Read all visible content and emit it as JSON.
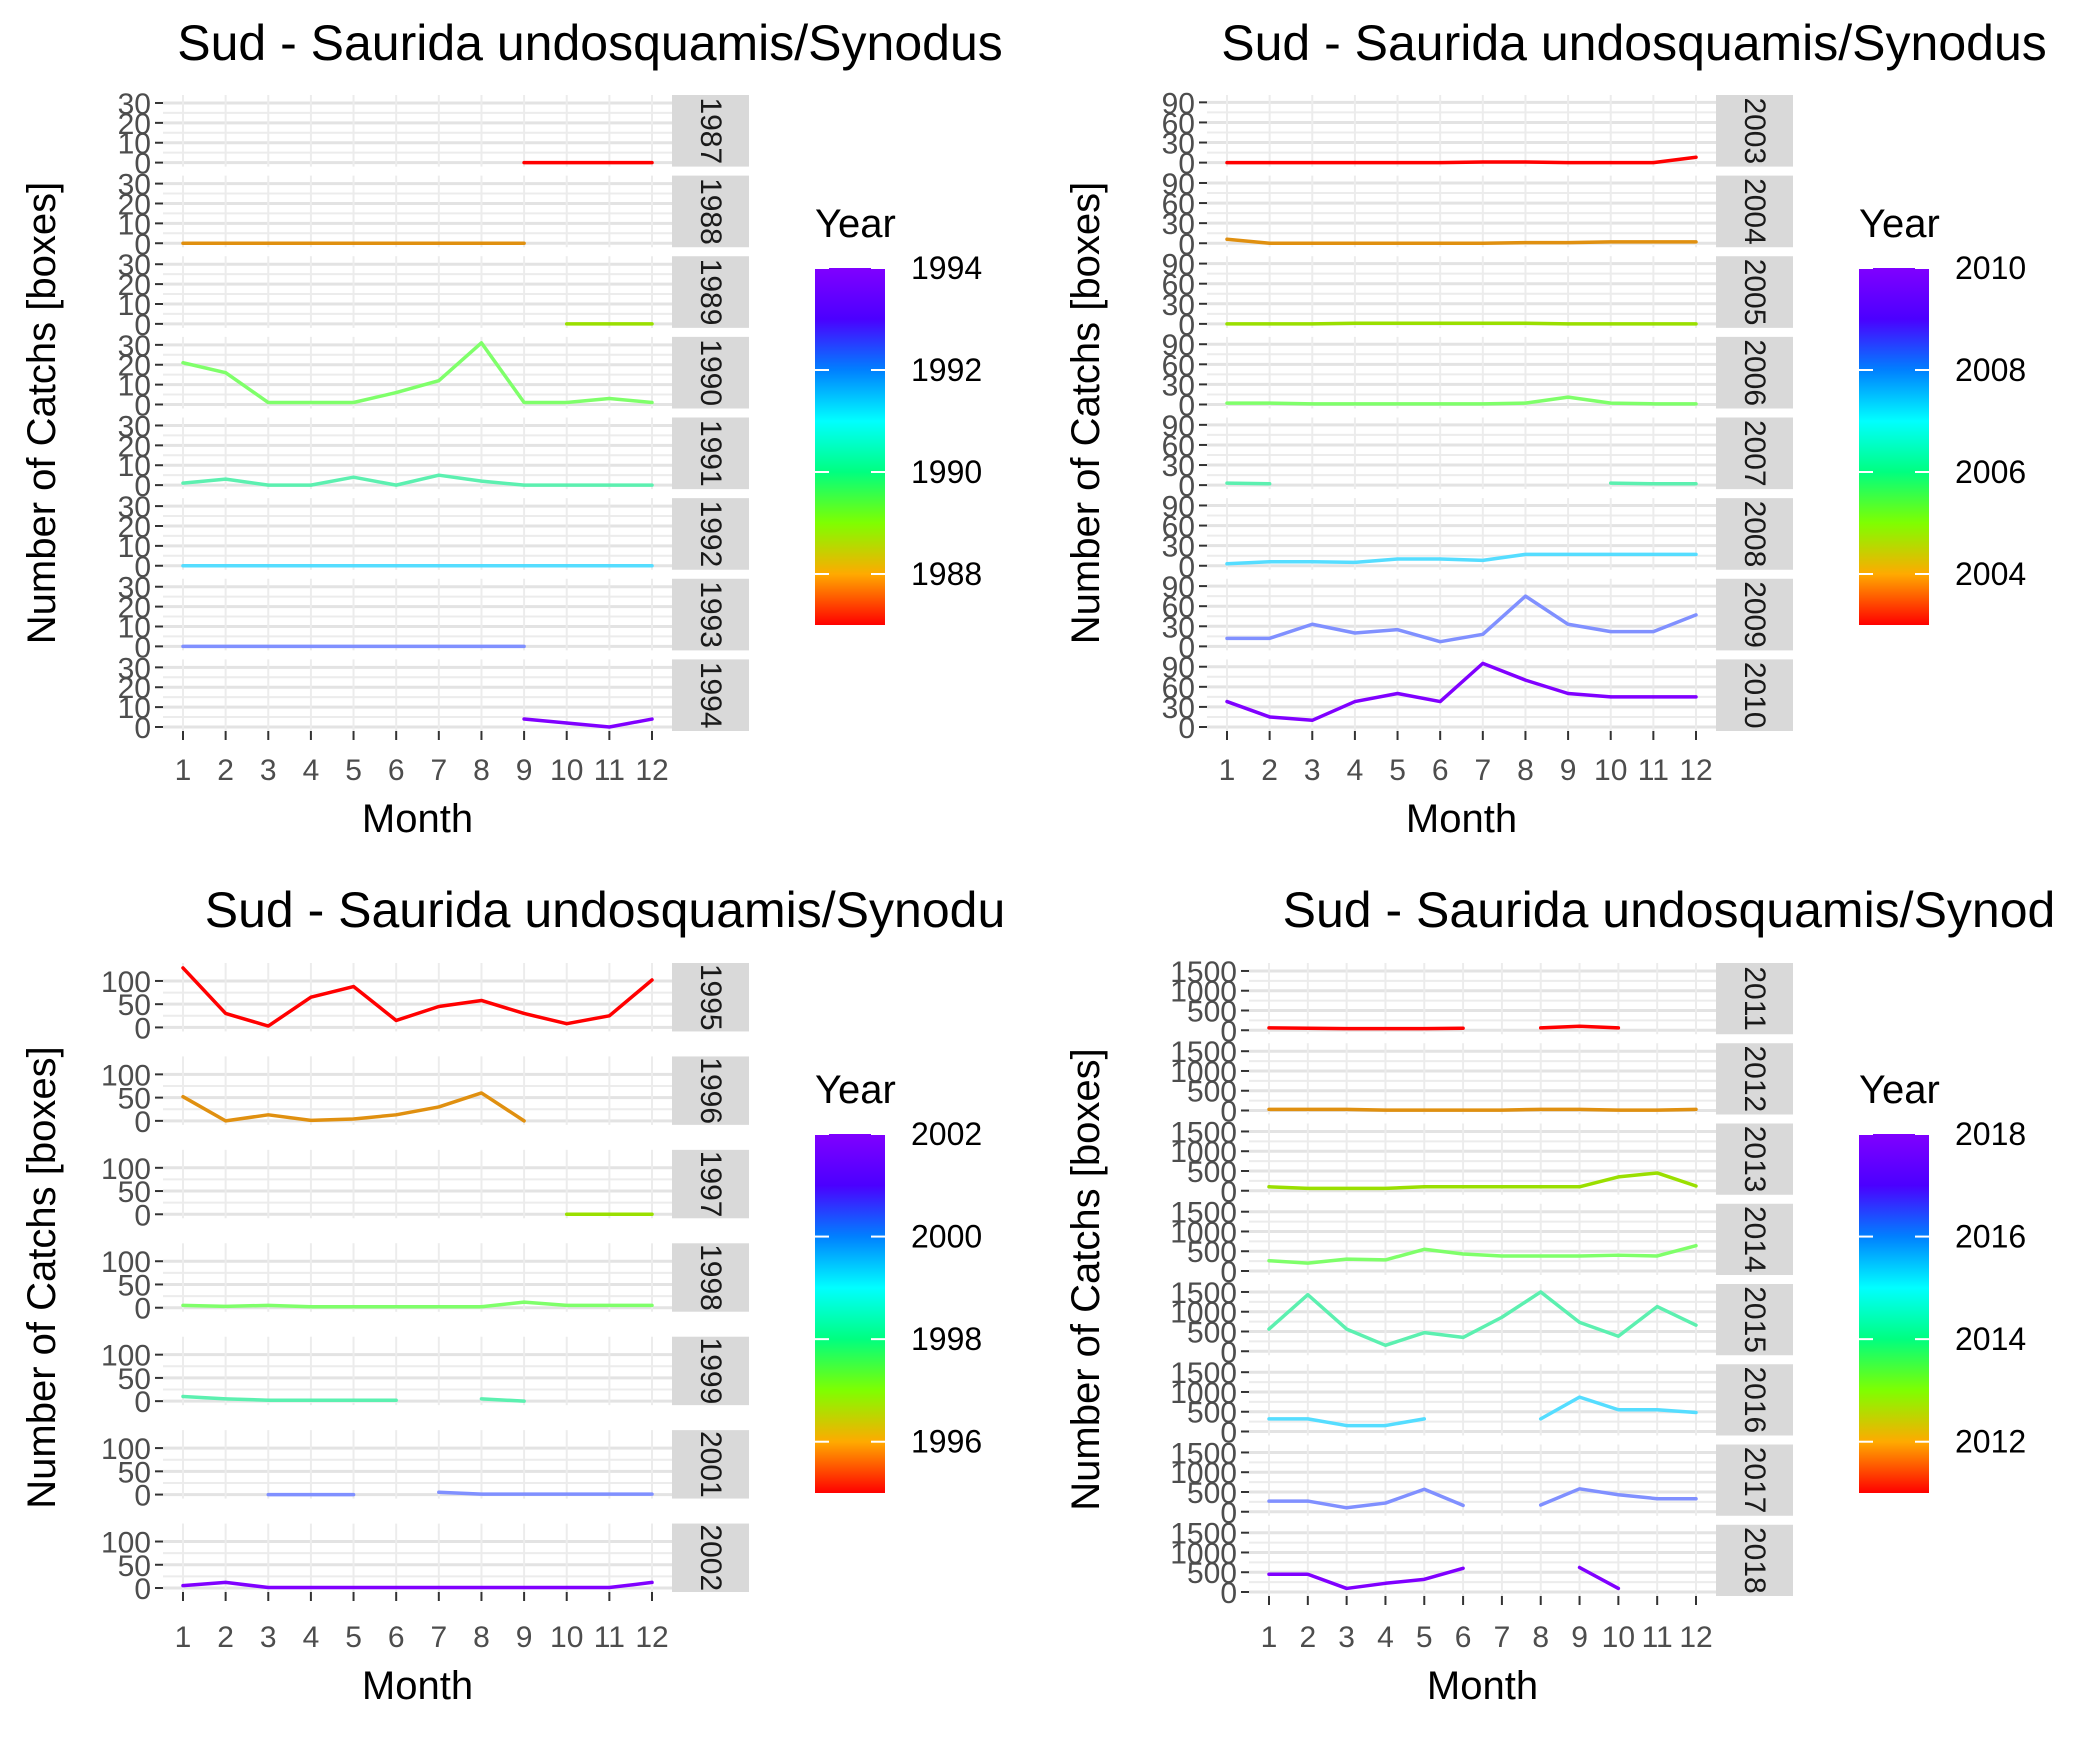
{
  "chart_data": [
    {
      "type": "line",
      "title": "Sud - Saurida undosquamis/Synodus",
      "xlabel": "Month",
      "ylabel": "Number of Catchs [boxes]",
      "x": [
        "1",
        "2",
        "3",
        "4",
        "5",
        "6",
        "7",
        "8",
        "9",
        "10",
        "11",
        "12"
      ],
      "yticks": [
        "0",
        "10",
        "20",
        "30"
      ],
      "ylim": [
        0,
        32
      ],
      "facet_strip_side": "right",
      "legend": {
        "title": "Year",
        "position": "right",
        "ticks": [
          "1994",
          "1992",
          "1990",
          "1988"
        ],
        "range": [
          1987,
          1994
        ],
        "colors": [
          "#ff0000",
          "#ffaa00",
          "#7fff00",
          "#00ff80",
          "#00ffff",
          "#0080ff",
          "#4b00ff",
          "#8000ff"
        ]
      },
      "panels": [
        {
          "label": "1987",
          "color": "#ff0000",
          "values": [
            null,
            null,
            null,
            null,
            null,
            null,
            null,
            null,
            0,
            0,
            0,
            0
          ]
        },
        {
          "label": "1988",
          "color": "#e09010",
          "values": [
            0,
            0,
            0,
            0,
            0,
            0,
            0,
            0,
            0,
            null,
            null,
            null
          ]
        },
        {
          "label": "1989",
          "color": "#9adf00",
          "values": [
            null,
            null,
            null,
            null,
            null,
            null,
            null,
            null,
            null,
            0,
            0,
            0
          ]
        },
        {
          "label": "1990",
          "color": "#7fff6a",
          "values": [
            21,
            16,
            1,
            1,
            1,
            6,
            12,
            31,
            1,
            1,
            3,
            1
          ]
        },
        {
          "label": "1991",
          "color": "#5cf0b0",
          "values": [
            1,
            3,
            0,
            0,
            4,
            0,
            5,
            2,
            0,
            0,
            0,
            0
          ]
        },
        {
          "label": "1992",
          "color": "#55ddff",
          "values": [
            0,
            0,
            0,
            0,
            0,
            0,
            0,
            0,
            0,
            0,
            0,
            0
          ]
        },
        {
          "label": "1993",
          "color": "#8090ff",
          "values": [
            0,
            0,
            0,
            0,
            0,
            0,
            0,
            0,
            0,
            null,
            null,
            null
          ]
        },
        {
          "label": "1994",
          "color": "#8000ff",
          "values": [
            null,
            null,
            null,
            null,
            null,
            null,
            null,
            null,
            4,
            2,
            0,
            4
          ]
        }
      ]
    },
    {
      "type": "line",
      "title": "Sud - Saurida undosquamis/Synodus",
      "xlabel": "Month",
      "ylabel": "Number of Catchs [boxes]",
      "x": [
        "1",
        "2",
        "3",
        "4",
        "5",
        "6",
        "7",
        "8",
        "9",
        "10",
        "11",
        "12"
      ],
      "yticks": [
        "0",
        "30",
        "60",
        "90"
      ],
      "ylim": [
        0,
        95
      ],
      "facet_strip_side": "right",
      "legend": {
        "title": "Year",
        "position": "right",
        "ticks": [
          "2010",
          "2008",
          "2006",
          "2004"
        ],
        "range": [
          2003,
          2010
        ],
        "colors": [
          "#ff0000",
          "#ffaa00",
          "#7fff00",
          "#00ff80",
          "#00ffff",
          "#0080ff",
          "#4b00ff",
          "#8000ff"
        ]
      },
      "panels": [
        {
          "label": "2003",
          "color": "#ff0000",
          "values": [
            0,
            0,
            0,
            0,
            0,
            0,
            1,
            1,
            0,
            0,
            0,
            8
          ]
        },
        {
          "label": "2004",
          "color": "#e09010",
          "values": [
            6,
            0,
            0,
            0,
            0,
            0,
            0,
            1,
            1,
            2,
            2,
            2
          ]
        },
        {
          "label": "2005",
          "color": "#9adf00",
          "values": [
            0,
            0,
            0,
            1,
            1,
            1,
            1,
            1,
            0,
            0,
            0,
            0
          ]
        },
        {
          "label": "2006",
          "color": "#7fff6a",
          "values": [
            2,
            2,
            1,
            1,
            1,
            1,
            1,
            2,
            11,
            2,
            1,
            1
          ]
        },
        {
          "label": "2007",
          "color": "#5cf0b0",
          "values": [
            3,
            2,
            null,
            null,
            null,
            null,
            null,
            null,
            null,
            3,
            2,
            2
          ]
        },
        {
          "label": "2008",
          "color": "#55ddff",
          "values": [
            3,
            6,
            6,
            5,
            10,
            10,
            8,
            17,
            17,
            17,
            17,
            17
          ]
        },
        {
          "label": "2009",
          "color": "#8090ff",
          "values": [
            12,
            12,
            33,
            20,
            25,
            7,
            18,
            75,
            33,
            22,
            22,
            47
          ]
        },
        {
          "label": "2010",
          "color": "#8000ff",
          "values": [
            38,
            15,
            10,
            38,
            50,
            38,
            97,
            70,
            50,
            45,
            45,
            45
          ]
        }
      ]
    },
    {
      "type": "line",
      "title": "Sud - Saurida undosquamis/Synodu",
      "xlabel": "Month",
      "ylabel": "Number of Catchs [boxes]",
      "x": [
        "1",
        "2",
        "3",
        "4",
        "5",
        "6",
        "7",
        "8",
        "9",
        "10",
        "11",
        "12"
      ],
      "yticks": [
        "0",
        "50",
        "100"
      ],
      "ylim": [
        0,
        130
      ],
      "facet_strip_side": "right",
      "legend": {
        "title": "Year",
        "position": "right",
        "ticks": [
          "2002",
          "2000",
          "1998",
          "1996"
        ],
        "range": [
          1995,
          2002
        ],
        "colors": [
          "#ff0000",
          "#ffaa00",
          "#7fff00",
          "#00ff80",
          "#00ffff",
          "#0080ff",
          "#4b00ff",
          "#8000ff"
        ]
      },
      "panels": [
        {
          "label": "1995",
          "color": "#ff0000",
          "values": [
            128,
            30,
            3,
            65,
            88,
            15,
            45,
            58,
            30,
            8,
            25,
            102
          ]
        },
        {
          "label": "1996",
          "color": "#e09010",
          "values": [
            52,
            0,
            13,
            1,
            4,
            13,
            30,
            60,
            0,
            null,
            null,
            null
          ]
        },
        {
          "label": "1997",
          "color": "#9adf00",
          "values": [
            null,
            null,
            null,
            null,
            null,
            null,
            null,
            null,
            null,
            0,
            0,
            0
          ]
        },
        {
          "label": "1998",
          "color": "#7fff6a",
          "values": [
            5,
            3,
            5,
            2,
            2,
            2,
            2,
            2,
            12,
            5,
            5,
            5
          ]
        },
        {
          "label": "1999",
          "color": "#5cf0b0",
          "values": [
            10,
            5,
            2,
            2,
            2,
            2,
            null,
            5,
            0,
            null,
            null,
            null
          ]
        },
        {
          "label": "2001",
          "color": "#8090ff",
          "values": [
            null,
            null,
            0,
            0,
            0,
            null,
            5,
            1,
            1,
            1,
            1,
            1
          ]
        },
        {
          "label": "2002",
          "color": "#8000ff",
          "values": [
            5,
            12,
            1,
            1,
            1,
            1,
            1,
            1,
            1,
            1,
            1,
            12
          ]
        }
      ]
    },
    {
      "type": "line",
      "title": "Sud - Saurida undosquamis/Synod",
      "xlabel": "Month",
      "ylabel": "Number of Catchs [boxes]",
      "x": [
        "1",
        "2",
        "3",
        "4",
        "5",
        "6",
        "7",
        "8",
        "9",
        "10",
        "11",
        "12"
      ],
      "yticks": [
        "0",
        "500",
        "1000",
        "1500"
      ],
      "ylim": [
        0,
        1600
      ],
      "facet_strip_side": "right",
      "legend": {
        "title": "Year",
        "position": "right",
        "ticks": [
          "2018",
          "2016",
          "2014",
          "2012"
        ],
        "range": [
          2011,
          2018
        ],
        "colors": [
          "#ff0000",
          "#ffaa00",
          "#7fff00",
          "#00ff80",
          "#00ffff",
          "#0080ff",
          "#4b00ff",
          "#8000ff"
        ]
      },
      "panels": [
        {
          "label": "2011",
          "color": "#ff0000",
          "values": [
            60,
            50,
            40,
            40,
            40,
            50,
            null,
            60,
            100,
            60,
            null,
            null
          ]
        },
        {
          "label": "2012",
          "color": "#e09010",
          "values": [
            30,
            30,
            30,
            10,
            10,
            10,
            10,
            30,
            30,
            10,
            10,
            30
          ]
        },
        {
          "label": "2013",
          "color": "#9adf00",
          "values": [
            100,
            60,
            60,
            60,
            100,
            100,
            100,
            100,
            100,
            350,
            450,
            120
          ]
        },
        {
          "label": "2014",
          "color": "#7fff6a",
          "values": [
            260,
            200,
            300,
            280,
            550,
            430,
            380,
            380,
            380,
            400,
            380,
            640
          ]
        },
        {
          "label": "2015",
          "color": "#5cf0b0",
          "values": [
            560,
            1430,
            560,
            150,
            470,
            350,
            860,
            1500,
            730,
            380,
            1130,
            660
          ]
        },
        {
          "label": "2016",
          "color": "#55ddff",
          "values": [
            320,
            320,
            150,
            150,
            320,
            null,
            null,
            320,
            870,
            550,
            550,
            480
          ]
        },
        {
          "label": "2017",
          "color": "#8090ff",
          "values": [
            270,
            270,
            100,
            220,
            570,
            160,
            null,
            170,
            580,
            430,
            330,
            330
          ]
        },
        {
          "label": "2018",
          "color": "#8000ff",
          "values": [
            450,
            450,
            90,
            220,
            320,
            600,
            null,
            null,
            620,
            90,
            null,
            null
          ]
        }
      ]
    }
  ]
}
